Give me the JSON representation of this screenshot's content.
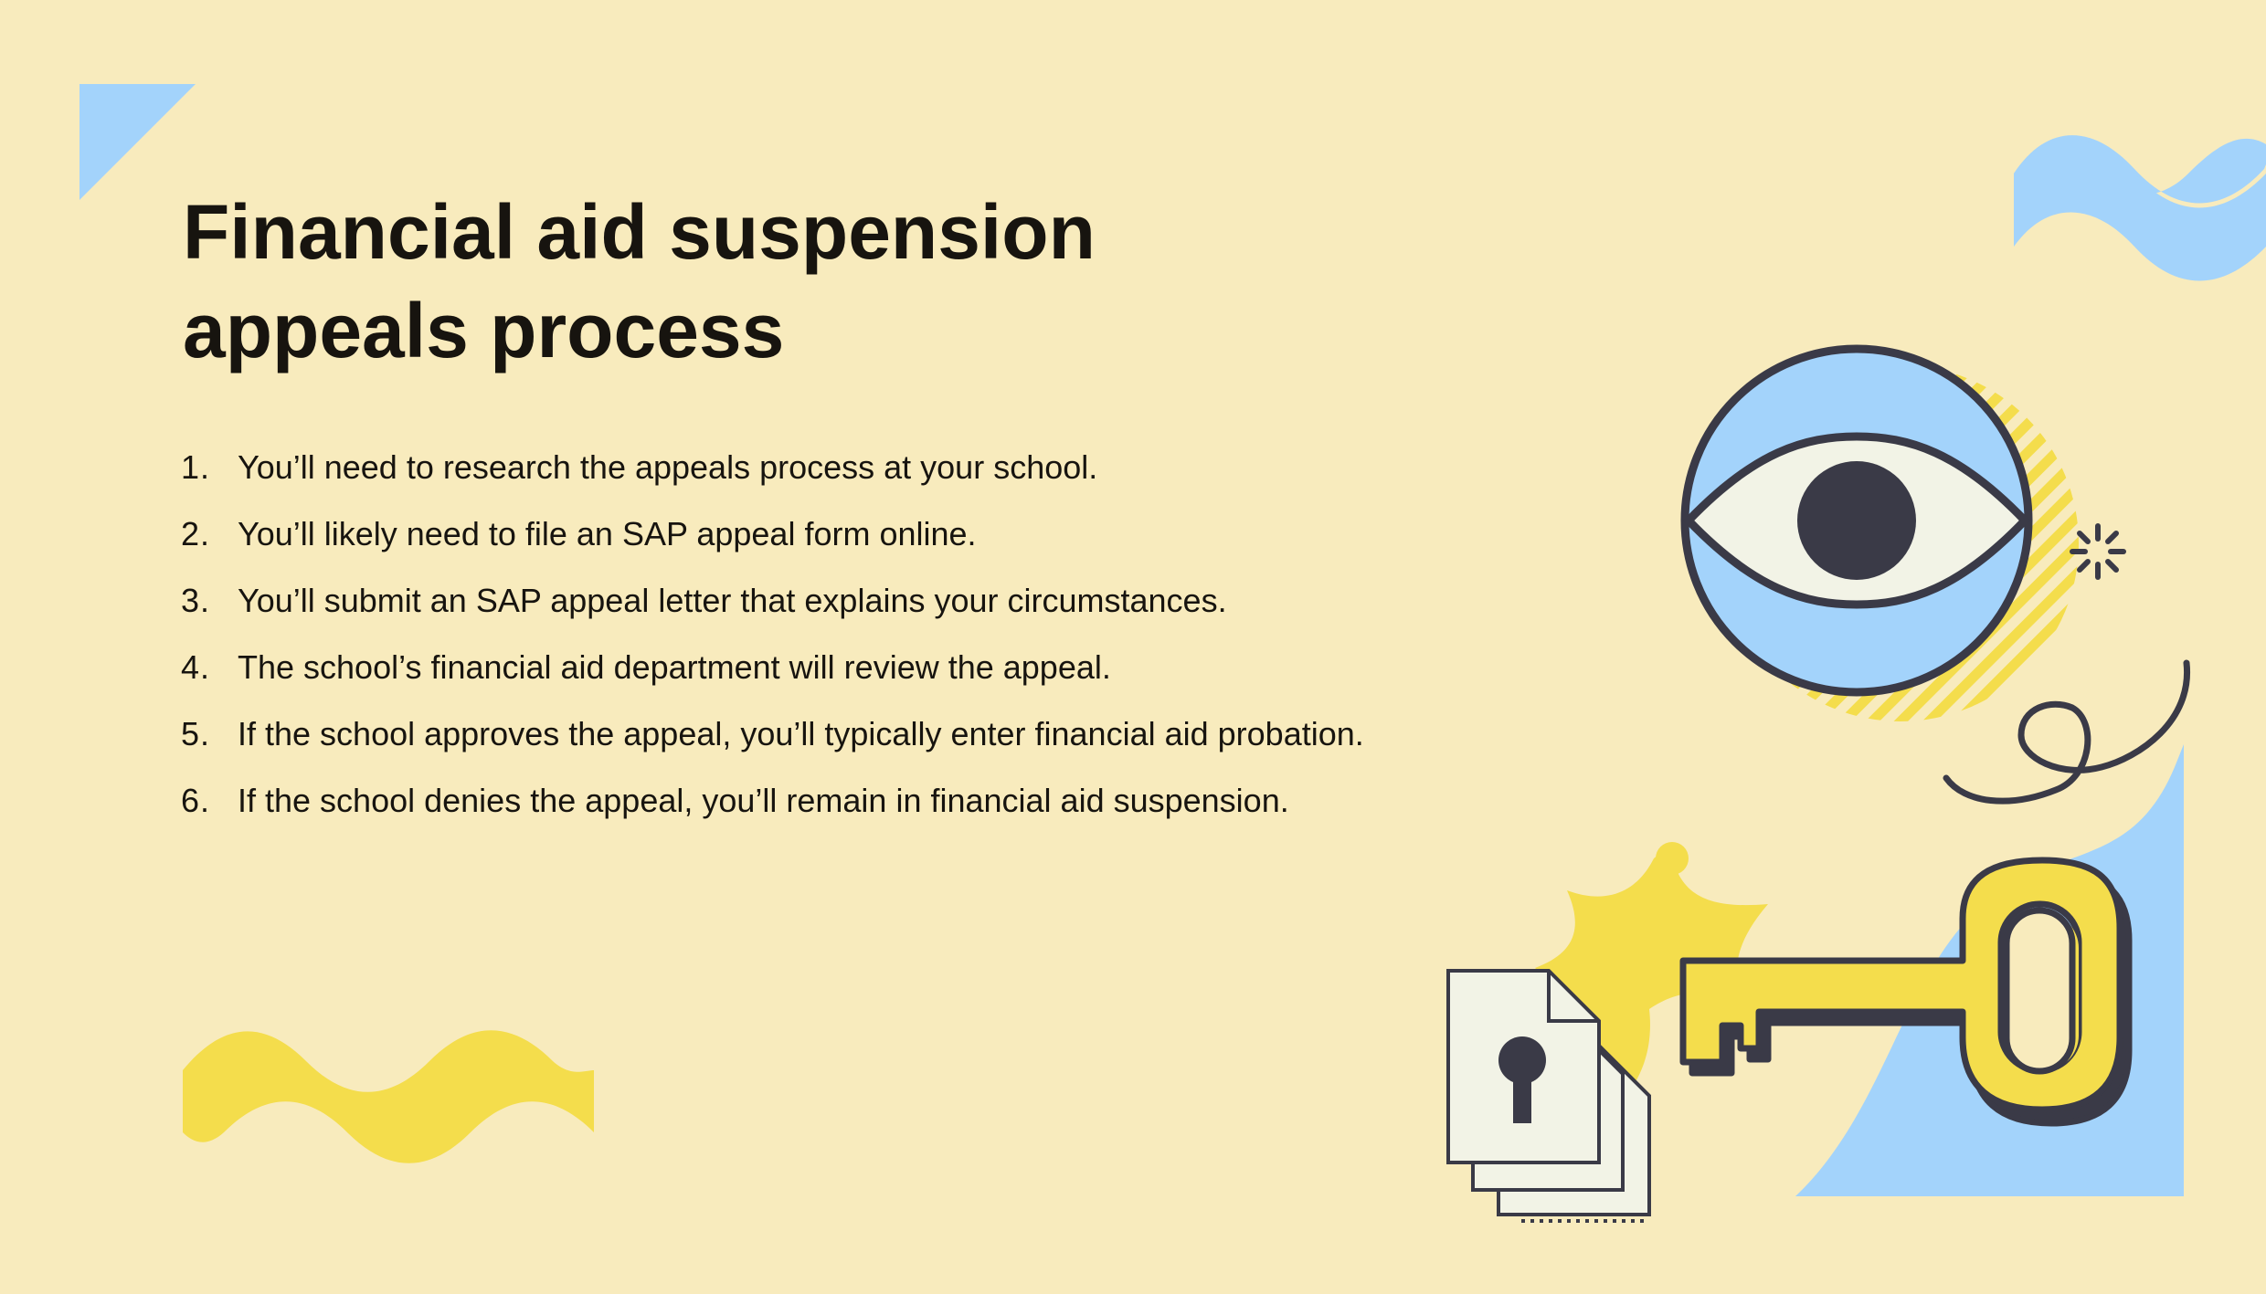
{
  "title": {
    "line1": "Financial aid suspension",
    "line2": "appeals process"
  },
  "steps": [
    {
      "num": "1.",
      "text": "You’ll need to research the appeals process at your school."
    },
    {
      "num": "2.",
      "text": "You’ll likely need to file an SAP appeal form online."
    },
    {
      "num": "3.",
      "text": "You’ll submit an SAP appeal letter that explains your circumstances."
    },
    {
      "num": "4.",
      "text": "The school’s financial aid department will review the appeal."
    },
    {
      "num": "5.",
      "text": "If the school approves the appeal, you’ll typically enter financial aid probation."
    },
    {
      "num": "6.",
      "text": "If the school denies the appeal, you’ll remain in financial aid suspension."
    }
  ],
  "colors": {
    "background": "#f8ebbd",
    "blue": "#a3d3fb",
    "yellow": "#f4dd4c",
    "ink": "#3a3a47",
    "paper": "#f2f3e6"
  },
  "icons": [
    "eye-icon",
    "key-icon",
    "locked-document-icon",
    "sparkle-icon",
    "star-burst",
    "squiggle-line"
  ]
}
